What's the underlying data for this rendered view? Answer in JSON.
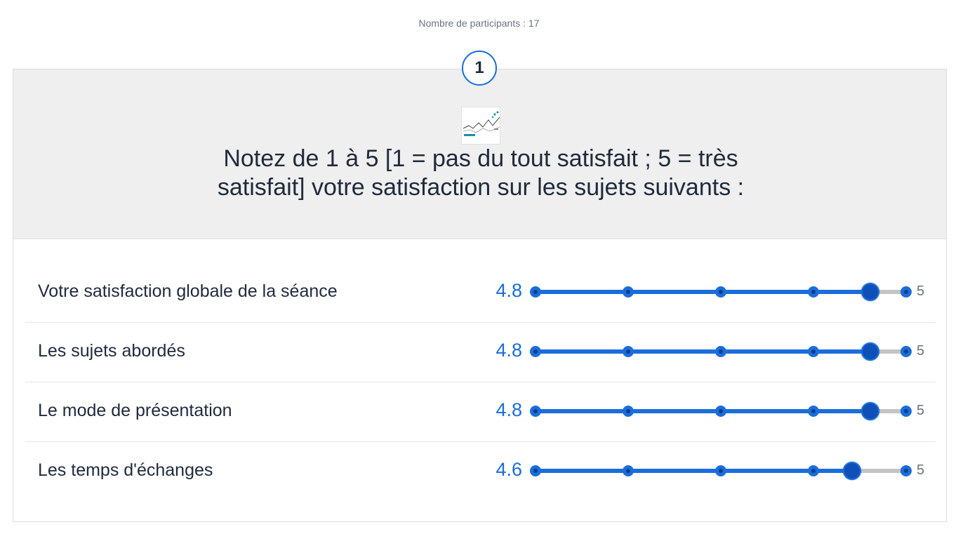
{
  "participants_text": "Nombre de participants : 17",
  "question": {
    "number": "1",
    "title": "Notez de 1 à 5 [1 = pas du tout satisfait ; 5 = très satisfait] votre satisfaction sur les sujets suivants :",
    "image_icon": "survey-logo-icon"
  },
  "scale": {
    "min": 1,
    "max": 5,
    "max_label": "5"
  },
  "colors": {
    "accent": "#1a6ddb",
    "thumb": "#0f4fb8",
    "track_empty": "#c4c4c4",
    "header_bg": "#efefef"
  },
  "rows": [
    {
      "label": "Votre satisfaction globale de la séance",
      "value": 4.8,
      "value_text": "4.8"
    },
    {
      "label": "Les sujets abordés",
      "value": 4.8,
      "value_text": "4.8"
    },
    {
      "label": "Le mode de présentation",
      "value": 4.8,
      "value_text": "4.8"
    },
    {
      "label": "Les temps d'échanges",
      "value": 4.6,
      "value_text": "4.6"
    }
  ]
}
